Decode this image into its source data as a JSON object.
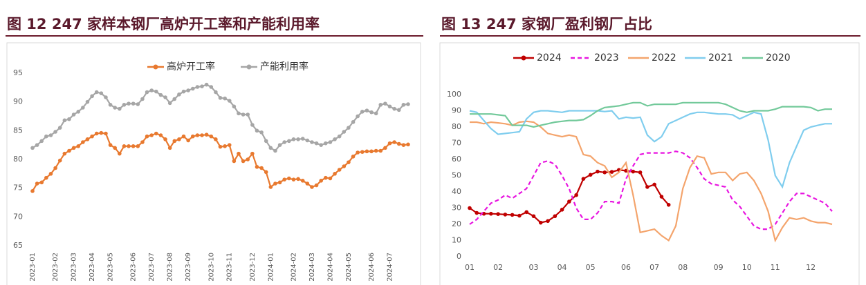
{
  "chart_data": [
    {
      "type": "line",
      "title": "图 12 247 家样本钢厂高炉开工率和产能利用率",
      "categories": [
        "2023-01",
        null,
        null,
        null,
        null,
        "2023-02",
        null,
        null,
        null,
        "2023-03",
        null,
        null,
        null,
        "2023-04",
        null,
        null,
        null,
        "2023-05",
        null,
        null,
        null,
        null,
        "2023-06",
        null,
        null,
        null,
        "2023-07",
        null,
        null,
        null,
        "2023-08",
        null,
        null,
        null,
        "2023-09",
        null,
        null,
        null,
        null,
        "2023-10",
        null,
        null,
        null,
        "2023-11",
        null,
        null,
        null,
        null,
        "2023-12",
        null,
        null,
        null,
        "2024-01",
        null,
        null,
        null,
        null,
        "2024-02",
        null,
        null,
        null,
        "2024-03",
        null,
        null,
        null,
        "2024-04",
        null,
        null,
        null,
        "2024-05",
        null,
        null,
        null,
        null,
        "2024-06",
        null,
        null,
        null,
        "2024-07",
        null,
        null,
        null,
        null
      ],
      "series": [
        {
          "name": "高炉开工率",
          "color": "#e8792f",
          "marker": true,
          "values": [
            74.5,
            75.8,
            76,
            76.8,
            77.5,
            78.5,
            79.8,
            81,
            81.5,
            82,
            82.3,
            83,
            83.5,
            84,
            84.5,
            84.6,
            84.5,
            82.5,
            82,
            81,
            82.3,
            82.3,
            82.3,
            82.3,
            83,
            84,
            84.2,
            84.5,
            84.2,
            83.5,
            82,
            83.2,
            83.5,
            84,
            83.3,
            84,
            84.2,
            84.2,
            84.3,
            84,
            83.5,
            82.2,
            82.3,
            82.5,
            79.7,
            81,
            79.7,
            80,
            81,
            78.7,
            78.5,
            77.8,
            75.2,
            75.8,
            76,
            76.5,
            76.7,
            76.5,
            76.6,
            76.3,
            75.8,
            75.2,
            75.5,
            76.3,
            76.8,
            76.7,
            77.5,
            78.2,
            78.8,
            79.5,
            80.5,
            81.2,
            81.3,
            81.4,
            81.4,
            81.5,
            81.5,
            82,
            82.8,
            83,
            82.7,
            82.5,
            82.6
          ]
        },
        {
          "name": "产能利用率",
          "color": "#a6a6a6",
          "marker": true,
          "values": [
            82,
            82.5,
            83.2,
            84,
            84.2,
            84.8,
            85.5,
            86.8,
            87,
            87.8,
            88.3,
            89,
            90,
            91,
            91.7,
            91.5,
            90.8,
            89.5,
            89,
            88.8,
            89.5,
            89.7,
            89.7,
            89.6,
            90.5,
            91.7,
            92,
            91.8,
            91.2,
            90.8,
            89.8,
            90.5,
            91.3,
            91.8,
            92,
            92.3,
            92.6,
            92.7,
            93,
            92.6,
            91.7,
            90.7,
            90.6,
            90.2,
            89.2,
            88,
            87.8,
            87.8,
            86,
            85,
            84.7,
            83.2,
            82,
            81.5,
            82.5,
            83,
            83.2,
            83.5,
            83.5,
            83.6,
            83.3,
            83,
            82.8,
            82.5,
            82.8,
            83,
            83.5,
            84,
            84.8,
            85.5,
            86.5,
            87.5,
            88.3,
            88.5,
            88.2,
            88,
            89.5,
            89.7,
            89.2,
            88.8,
            88.6,
            89.5,
            89.6
          ]
        }
      ],
      "ylim": [
        65,
        95
      ],
      "yticks": [
        65,
        70,
        75,
        80,
        85,
        90,
        95
      ],
      "grid": false,
      "legend": "top"
    },
    {
      "type": "line",
      "title": "图 13 247 家钢厂盈利钢厂占比",
      "categories": [
        "01",
        null,
        null,
        null,
        "02",
        null,
        null,
        null,
        null,
        "03",
        null,
        null,
        null,
        "04",
        null,
        null,
        null,
        "05",
        null,
        null,
        null,
        null,
        "06",
        null,
        null,
        null,
        "07",
        null,
        null,
        null,
        "08",
        null,
        null,
        null,
        null,
        "09",
        null,
        null,
        null,
        "10",
        null,
        null,
        null,
        "11",
        null,
        null,
        null,
        null,
        "12",
        null,
        null,
        null
      ],
      "series": [
        {
          "name": "2024",
          "color": "#c00000",
          "marker": true,
          "values": [
            30,
            27,
            26.5,
            26.5,
            26.3,
            26,
            25.8,
            25.3,
            27.5,
            25,
            21,
            22,
            25,
            29,
            34,
            38,
            48,
            50.5,
            52.5,
            52,
            52.3,
            53.5,
            53,
            52.5,
            52,
            43,
            44.5,
            37,
            32,
            null,
            null,
            null,
            null,
            null,
            null,
            null,
            null,
            null,
            null,
            null,
            null,
            null,
            null,
            null,
            null,
            null,
            null,
            null,
            null,
            null,
            null,
            null
          ]
        },
        {
          "name": "2023",
          "color": "#e815e0",
          "dash": true,
          "values": [
            20,
            23,
            28,
            33,
            35,
            38,
            36,
            39,
            42,
            50,
            58,
            59,
            57,
            50,
            42,
            30,
            23,
            23,
            27,
            34,
            34,
            33,
            48,
            56,
            63,
            64,
            64,
            64,
            64,
            65,
            64,
            61,
            55,
            48,
            45,
            44,
            43,
            35,
            31,
            25,
            19,
            17,
            17,
            20,
            27,
            34,
            39,
            39,
            37,
            35,
            33,
            28
          ]
        },
        {
          "name": "2022",
          "color": "#f4a46c",
          "values": [
            83,
            83,
            82,
            83,
            82.5,
            82,
            81,
            83,
            83.5,
            83,
            80,
            76,
            75,
            74,
            75,
            74,
            63,
            62,
            58,
            56,
            49,
            52,
            58,
            38,
            15,
            16,
            17,
            13,
            10,
            19,
            42,
            55,
            62,
            61,
            51,
            52,
            52,
            47,
            51,
            52,
            47,
            39,
            28,
            10,
            18,
            24,
            23,
            24,
            22,
            21,
            21,
            20
          ]
        },
        {
          "name": "2021",
          "color": "#7fcdee",
          "values": [
            90,
            89,
            84,
            79,
            75.5,
            76,
            76.5,
            77,
            85,
            89,
            90,
            90,
            89.5,
            89,
            90,
            90,
            90,
            90,
            90,
            89.5,
            90,
            85,
            86,
            85.5,
            86,
            75,
            71,
            74,
            82,
            84,
            86,
            88,
            89,
            89,
            88.5,
            88,
            88,
            87.5,
            85,
            87,
            89,
            88,
            72,
            50,
            43,
            58,
            68,
            78,
            80,
            81,
            82,
            82
          ]
        },
        {
          "name": "2020",
          "color": "#72c99a",
          "values": [
            88,
            88,
            88,
            88,
            87.5,
            87,
            81,
            81,
            81,
            80,
            81,
            82,
            83,
            83.5,
            84,
            84,
            84.5,
            87,
            90,
            92,
            92.5,
            93,
            94,
            95,
            95,
            93,
            94,
            94,
            94,
            94,
            95,
            95,
            95,
            95,
            95,
            95,
            94,
            92,
            90,
            89,
            90,
            90,
            90,
            91,
            92.5,
            92.5,
            92.5,
            92.5,
            92,
            90,
            91,
            91
          ]
        }
      ],
      "ylim": [
        0,
        100
      ],
      "yticks": [
        0,
        10,
        20,
        30,
        40,
        50,
        60,
        70,
        80,
        90,
        100
      ],
      "grid": false,
      "legend": "top"
    }
  ]
}
